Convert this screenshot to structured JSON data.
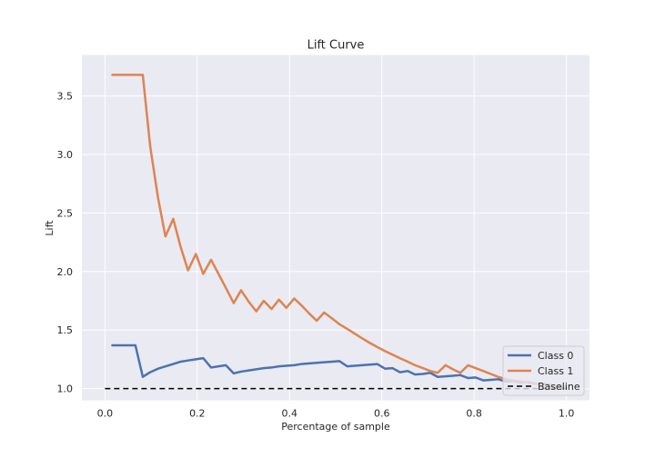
{
  "chart_data": {
    "type": "line",
    "title": "Lift Curve",
    "xlabel": "Percentage of sample",
    "ylabel": "Lift",
    "xlim": [
      -0.05,
      1.05
    ],
    "ylim": [
      0.9,
      3.85
    ],
    "xticks": [
      0.0,
      0.2,
      0.4,
      0.6,
      0.8,
      1.0
    ],
    "xtick_labels": [
      "0.0",
      "0.2",
      "0.4",
      "0.6",
      "0.8",
      "1.0"
    ],
    "yticks": [
      1.0,
      1.5,
      2.0,
      2.5,
      3.0,
      3.5
    ],
    "ytick_labels": [
      "1.0",
      "1.5",
      "2.0",
      "2.5",
      "3.0",
      "3.5"
    ],
    "grid": true,
    "legend_position": "bottom-right",
    "series": [
      {
        "name": "Class 0",
        "color": "#4c72b0",
        "x": [
          0.016,
          0.033,
          0.049,
          0.066,
          0.082,
          0.098,
          0.115,
          0.131,
          0.148,
          0.164,
          0.18,
          0.197,
          0.213,
          0.23,
          0.246,
          0.262,
          0.279,
          0.295,
          0.312,
          0.328,
          0.344,
          0.361,
          0.377,
          0.393,
          0.41,
          0.426,
          0.443,
          0.459,
          0.475,
          0.492,
          0.508,
          0.525,
          0.541,
          0.557,
          0.574,
          0.59,
          0.607,
          0.623,
          0.639,
          0.656,
          0.672,
          0.689,
          0.705,
          0.721,
          0.738,
          0.754,
          0.77,
          0.787,
          0.803,
          0.82,
          0.836,
          0.852,
          0.869,
          0.885,
          0.902,
          0.918,
          0.934,
          0.951,
          0.967,
          0.984,
          1.0
        ],
        "y": [
          1.37,
          1.37,
          1.37,
          1.37,
          1.1,
          1.14,
          1.17,
          1.19,
          1.21,
          1.23,
          1.24,
          1.25,
          1.26,
          1.18,
          1.19,
          1.2,
          1.13,
          1.145,
          1.155,
          1.165,
          1.175,
          1.18,
          1.19,
          1.195,
          1.2,
          1.21,
          1.215,
          1.22,
          1.225,
          1.23,
          1.235,
          1.19,
          1.195,
          1.2,
          1.205,
          1.21,
          1.17,
          1.175,
          1.14,
          1.15,
          1.12,
          1.125,
          1.135,
          1.1,
          1.105,
          1.11,
          1.115,
          1.09,
          1.095,
          1.07,
          1.075,
          1.08,
          1.06,
          1.065,
          1.05,
          1.055,
          1.04,
          1.04,
          1.03,
          1.02,
          1.0
        ]
      },
      {
        "name": "Class 1",
        "color": "#dd8452",
        "x": [
          0.016,
          0.033,
          0.049,
          0.066,
          0.082,
          0.098,
          0.115,
          0.131,
          0.148,
          0.164,
          0.18,
          0.197,
          0.213,
          0.23,
          0.246,
          0.262,
          0.279,
          0.295,
          0.312,
          0.328,
          0.344,
          0.361,
          0.377,
          0.393,
          0.41,
          0.426,
          0.443,
          0.459,
          0.475,
          0.492,
          0.508,
          0.525,
          0.541,
          0.557,
          0.574,
          0.59,
          0.607,
          0.623,
          0.639,
          0.656,
          0.672,
          0.689,
          0.705,
          0.721,
          0.738,
          0.754,
          0.77,
          0.787,
          0.803,
          0.82,
          0.836,
          0.852,
          0.869,
          0.885,
          0.902,
          0.918,
          0.934,
          0.951,
          0.967,
          0.984,
          1.0
        ],
        "y": [
          3.68,
          3.68,
          3.68,
          3.68,
          3.68,
          3.07,
          2.63,
          2.3,
          2.45,
          2.21,
          2.01,
          2.15,
          1.98,
          2.1,
          1.98,
          1.86,
          1.73,
          1.84,
          1.74,
          1.66,
          1.75,
          1.68,
          1.76,
          1.69,
          1.77,
          1.71,
          1.64,
          1.58,
          1.65,
          1.6,
          1.55,
          1.51,
          1.47,
          1.43,
          1.39,
          1.355,
          1.32,
          1.29,
          1.26,
          1.23,
          1.2,
          1.175,
          1.15,
          1.135,
          1.2,
          1.165,
          1.135,
          1.2,
          1.175,
          1.15,
          1.125,
          1.1,
          1.08,
          1.07,
          1.06,
          1.05,
          1.04,
          1.03,
          1.02,
          1.01,
          1.0
        ]
      },
      {
        "name": "Baseline",
        "color": "#000000",
        "dashed": true,
        "x": [
          0.0,
          1.0
        ],
        "y": [
          1.0,
          1.0
        ]
      }
    ]
  }
}
